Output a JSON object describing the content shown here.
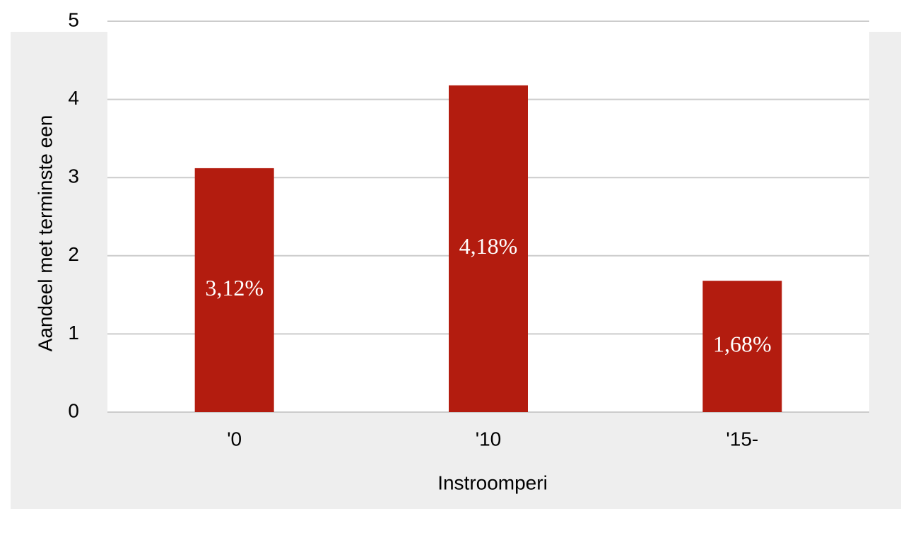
{
  "chart_data": {
    "type": "bar",
    "y_label": "Aandeel met terminste een",
    "x_label": "Instroomperi",
    "categories": [
      "'0",
      "'10",
      "'15-"
    ],
    "values": [
      3.12,
      4.18,
      1.68
    ],
    "value_labels": [
      "3,12%",
      "4,18%",
      "1,68%"
    ],
    "color": "#b31c0f",
    "ylim": [
      0,
      5
    ],
    "yticks": [
      0,
      1,
      2,
      3,
      4,
      5
    ],
    "grid": true
  }
}
